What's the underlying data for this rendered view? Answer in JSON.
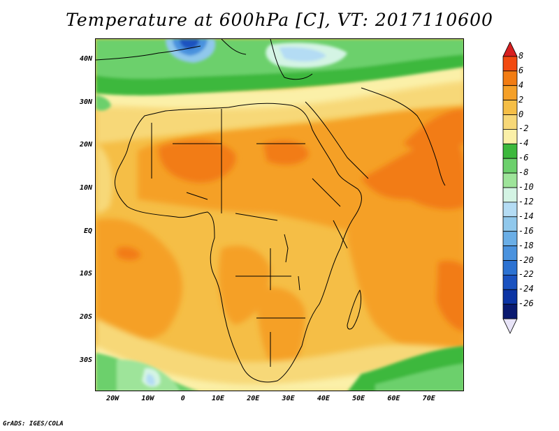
{
  "title": "Temperature at 600hPa [C], VT: 2017110600",
  "credit": "GrADS: IGES/COLA",
  "map": {
    "lon_range": [
      -25,
      80
    ],
    "lat_range": [
      -37,
      45
    ],
    "lat_ticks": [
      {
        "value": 40,
        "label": "40N"
      },
      {
        "value": 30,
        "label": "30N"
      },
      {
        "value": 20,
        "label": "20N"
      },
      {
        "value": 10,
        "label": "10N"
      },
      {
        "value": 0,
        "label": "EQ"
      },
      {
        "value": -10,
        "label": "10S"
      },
      {
        "value": -20,
        "label": "20S"
      },
      {
        "value": -30,
        "label": "30S"
      }
    ],
    "lon_ticks": [
      {
        "value": -20,
        "label": "20W"
      },
      {
        "value": -10,
        "label": "10W"
      },
      {
        "value": 0,
        "label": "0"
      },
      {
        "value": 10,
        "label": "10E"
      },
      {
        "value": 20,
        "label": "20E"
      },
      {
        "value": 30,
        "label": "30E"
      },
      {
        "value": 40,
        "label": "40E"
      },
      {
        "value": 50,
        "label": "50E"
      },
      {
        "value": 60,
        "label": "60E"
      },
      {
        "value": 70,
        "label": "70E"
      }
    ]
  },
  "colorbar": {
    "labels": [
      "8",
      "6",
      "4",
      "2",
      "0",
      "-2",
      "-4",
      "-6",
      "-8",
      "-10",
      "-12",
      "-14",
      "-16",
      "-18",
      "-20",
      "-22",
      "-24",
      "-26"
    ],
    "colors_top_to_bottom": [
      "#d72020",
      "#f24a10",
      "#f27c12",
      "#f5a028",
      "#f5be46",
      "#f7d878",
      "#fbf0a8",
      "#3cb83c",
      "#6cd06c",
      "#9ee49a",
      "#d4f4e4",
      "#b4dcf4",
      "#90c8ec",
      "#6aaee6",
      "#4a92de",
      "#2c72d2",
      "#1a52c0",
      "#0c34a4",
      "#0a1a70",
      "#e8e4f8"
    ]
  }
}
